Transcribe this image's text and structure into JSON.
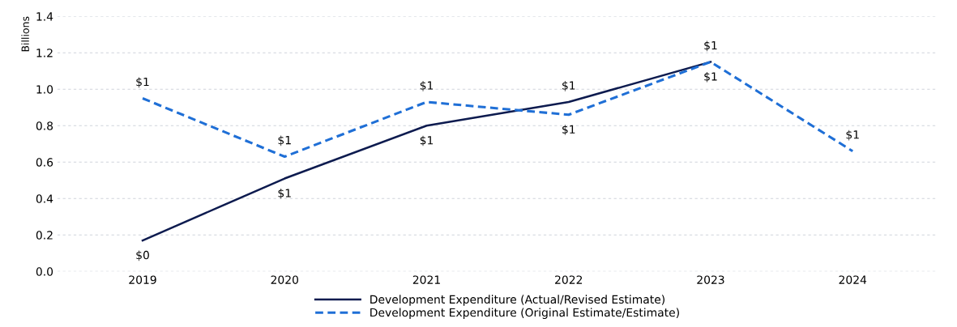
{
  "chart_data": {
    "type": "line",
    "ylabel": "Billions",
    "categories": [
      "2019",
      "2020",
      "2021",
      "2022",
      "2023",
      "2024"
    ],
    "series": [
      {
        "name": "Development Expenditure (Actual/Revised Estimate)",
        "color": "#0d1b4f",
        "line_style": "solid",
        "values": [
          0.17,
          0.51,
          0.8,
          0.93,
          1.15,
          null
        ],
        "value_labels": [
          "$0",
          "$1",
          "$1",
          "$1",
          "$1",
          null
        ]
      },
      {
        "name": "Development Expenditure (Original Estimate/Estimate)",
        "color": "#1f6fd6",
        "line_style": "dashed",
        "values": [
          0.95,
          0.63,
          0.93,
          0.86,
          1.15,
          0.66
        ],
        "value_labels": [
          "$1",
          "$1",
          "$1",
          "$1",
          "$1",
          "$1"
        ]
      }
    ],
    "ylim": [
      0,
      1.4
    ],
    "yticks": [
      {
        "value": 0,
        "label": "0.0"
      },
      {
        "value": 0.2,
        "label": "0.2"
      },
      {
        "value": 0.4,
        "label": "0.4"
      },
      {
        "value": 0.6,
        "label": "0.6"
      },
      {
        "value": 0.8,
        "label": "0.8"
      },
      {
        "value": 1.0,
        "label": "1.0"
      },
      {
        "value": 1.2,
        "label": "1.2"
      },
      {
        "value": 1.4,
        "label": "1.4"
      }
    ],
    "grid": "y",
    "legend": "bottom",
    "marker": "none"
  }
}
